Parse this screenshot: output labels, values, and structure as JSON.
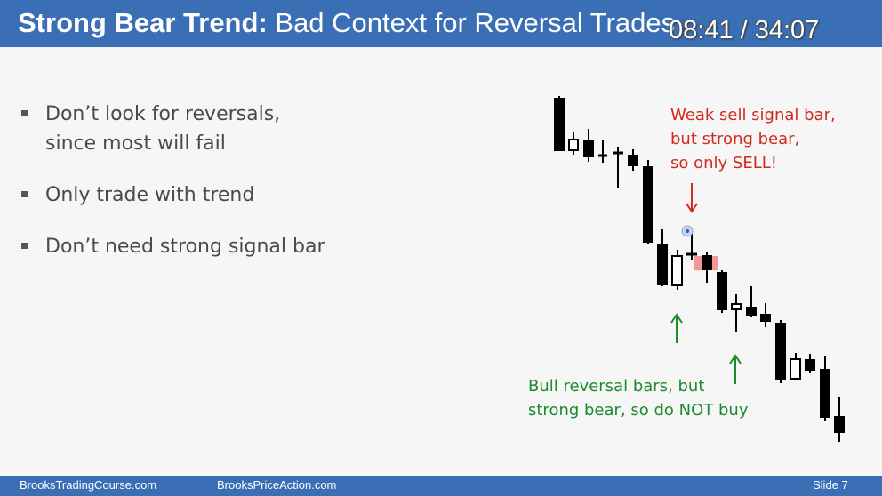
{
  "header": {
    "title_bold": "Strong Bear Trend:",
    "title_rest": " Bad Context for Reversal Trades",
    "timer": "08:41 / 34:07"
  },
  "bullets": [
    {
      "line1": "Don’t look for reversals,",
      "line2": "since most will fail"
    },
    {
      "line1": "Only trade with trend",
      "line2": ""
    },
    {
      "line1": "Don’t need strong signal bar",
      "line2": ""
    }
  ],
  "annotations": {
    "sell": [
      "Weak sell signal bar,",
      "but strong bear,",
      "so only SELL!"
    ],
    "buy": [
      "Bull reversal bars, but",
      "strong bear, so do NOT buy"
    ]
  },
  "footer": {
    "site1": "BrooksTradingCourse.com",
    "site2": "BrooksPriceAction.com",
    "slide": "Slide  7"
  },
  "colors": {
    "header": "#3a6fb5",
    "sell_annotation": "#d22a1e",
    "buy_annotation": "#1e8a2e",
    "signal_highlight": "#f07f7f"
  }
}
